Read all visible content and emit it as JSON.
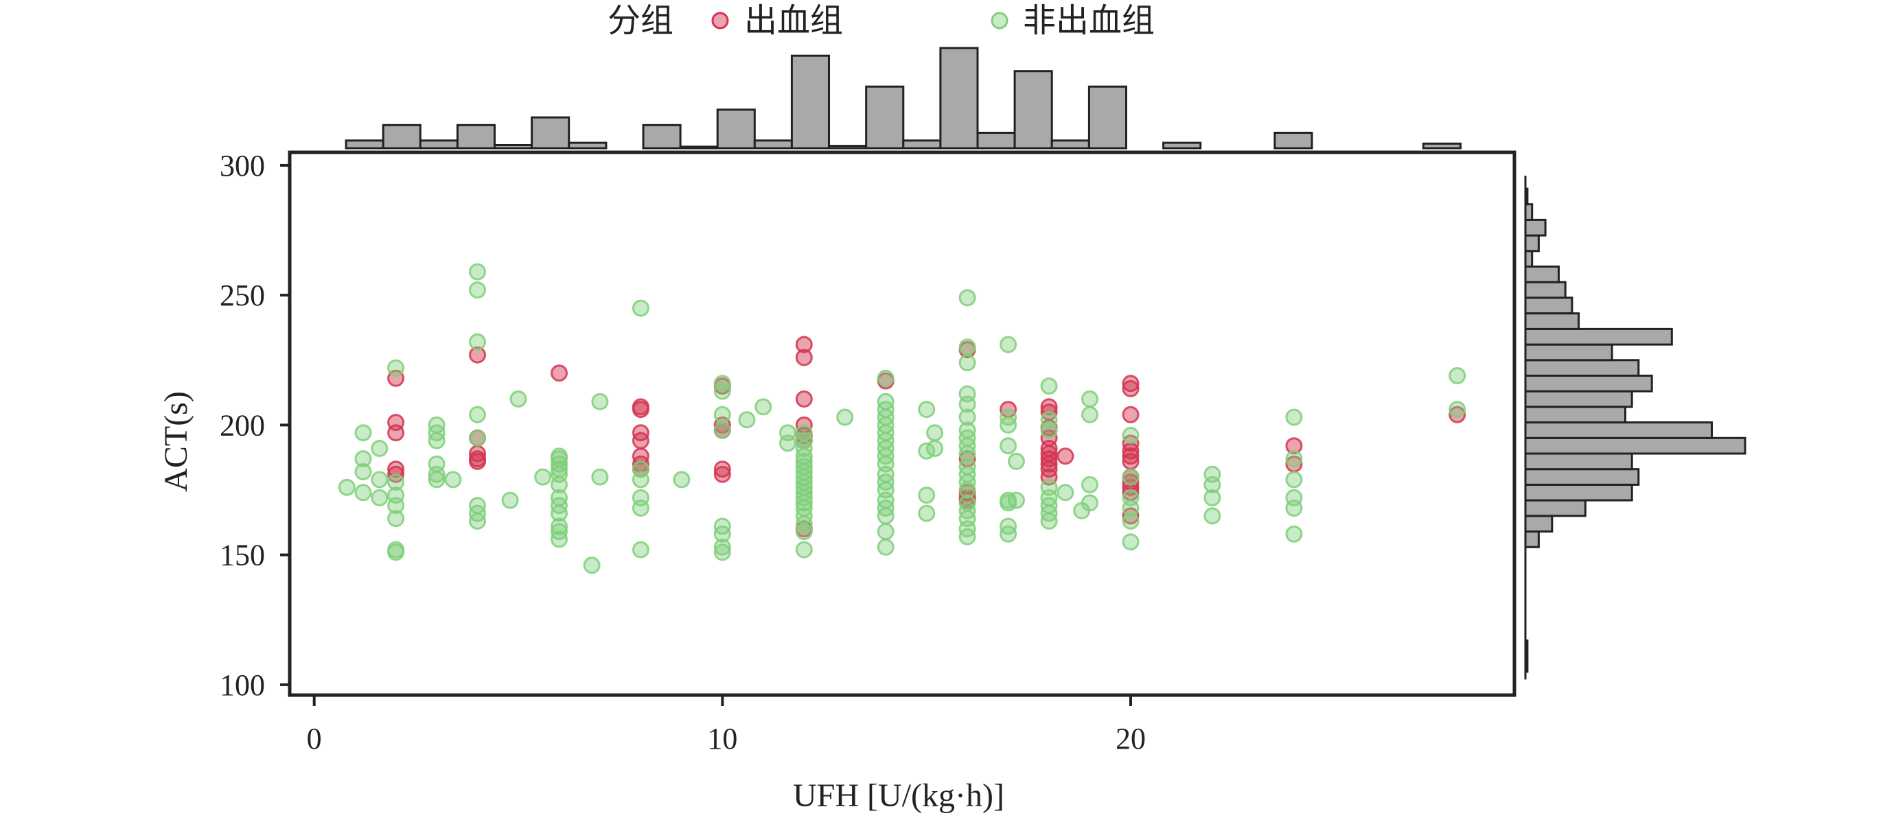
{
  "chart_data": {
    "type": "scatter",
    "xlabel": "UFH [U/(kg·h)]",
    "ylabel": "ACT(s)",
    "xlim": [
      -0.6,
      29.4
    ],
    "ylim": [
      96,
      305
    ],
    "x_ticks": [
      0,
      10,
      20
    ],
    "y_ticks": [
      100,
      150,
      200,
      250,
      300
    ],
    "legend": {
      "title": "分组",
      "placement": "top"
    },
    "marginal_histograms": {
      "top": {
        "type": "bar",
        "description_axis": "UFH",
        "bin_start": 0.78,
        "bin_width": 0.91,
        "counts": [
          1,
          3,
          1,
          3,
          0.4,
          4,
          0.7,
          0,
          3,
          0.2,
          5,
          1,
          12,
          0.3,
          8,
          1,
          13,
          2,
          10,
          1,
          8,
          0,
          0.7,
          0,
          0,
          2,
          0,
          0,
          0,
          0.6
        ]
      },
      "right": {
        "type": "bar",
        "description_axis": "ACT",
        "bin_start": 105,
        "bin_width": 6,
        "counts": [
          0.3,
          0.3,
          0,
          0,
          0,
          0,
          0,
          0,
          2,
          4,
          9,
          16,
          17,
          16,
          33,
          28,
          15,
          16,
          19,
          17,
          13,
          22,
          8,
          7,
          6,
          5,
          1,
          2,
          3,
          1,
          0.3
        ]
      }
    },
    "series": [
      {
        "name": "出血组",
        "color": "#d2344f",
        "points": [
          [
            2,
            218
          ],
          [
            2,
            201
          ],
          [
            2,
            197
          ],
          [
            2,
            183
          ],
          [
            2,
            181
          ],
          [
            4,
            227
          ],
          [
            4,
            195
          ],
          [
            4,
            189
          ],
          [
            4,
            187
          ],
          [
            4,
            186
          ],
          [
            6,
            220
          ],
          [
            8,
            207
          ],
          [
            8,
            206
          ],
          [
            8,
            197
          ],
          [
            8,
            194
          ],
          [
            8,
            188
          ],
          [
            8,
            185
          ],
          [
            8,
            183
          ],
          [
            10,
            215
          ],
          [
            10,
            200
          ],
          [
            10,
            198
          ],
          [
            10,
            183
          ],
          [
            10,
            181
          ],
          [
            12,
            231
          ],
          [
            12,
            226
          ],
          [
            12,
            210
          ],
          [
            12,
            200
          ],
          [
            12,
            196
          ],
          [
            12,
            194
          ],
          [
            12,
            160
          ],
          [
            14,
            217
          ],
          [
            16,
            229
          ],
          [
            16,
            187
          ],
          [
            16,
            174
          ],
          [
            16,
            172
          ],
          [
            16,
            171
          ],
          [
            17,
            206
          ],
          [
            18,
            207
          ],
          [
            18,
            205
          ],
          [
            18,
            199
          ],
          [
            18,
            195
          ],
          [
            18,
            191
          ],
          [
            18,
            189
          ],
          [
            18,
            187
          ],
          [
            18,
            185
          ],
          [
            18,
            183
          ],
          [
            18,
            180
          ],
          [
            18.4,
            188
          ],
          [
            20,
            216
          ],
          [
            20,
            214
          ],
          [
            20,
            204
          ],
          [
            20,
            193
          ],
          [
            20,
            190
          ],
          [
            20,
            188
          ],
          [
            20,
            186
          ],
          [
            20,
            180
          ],
          [
            20,
            178
          ],
          [
            20,
            176
          ],
          [
            20,
            174
          ],
          [
            20,
            165
          ],
          [
            24,
            192
          ],
          [
            24,
            185
          ],
          [
            28,
            204
          ]
        ]
      },
      {
        "name": "非出血组",
        "color": "#7fcf7a",
        "points": [
          [
            0.8,
            176
          ],
          [
            1.2,
            197
          ],
          [
            1.2,
            187
          ],
          [
            1.2,
            182
          ],
          [
            1.2,
            174
          ],
          [
            1.6,
            191
          ],
          [
            1.6,
            179
          ],
          [
            1.6,
            172
          ],
          [
            2,
            222
          ],
          [
            2,
            178
          ],
          [
            2,
            173
          ],
          [
            2,
            169
          ],
          [
            2,
            164
          ],
          [
            2,
            152
          ],
          [
            2,
            151
          ],
          [
            3,
            200
          ],
          [
            3,
            197
          ],
          [
            3,
            194
          ],
          [
            3,
            185
          ],
          [
            3,
            181
          ],
          [
            3,
            179
          ],
          [
            3.4,
            179
          ],
          [
            4,
            259
          ],
          [
            4,
            252
          ],
          [
            4,
            232
          ],
          [
            4,
            204
          ],
          [
            4,
            195
          ],
          [
            4,
            169
          ],
          [
            4,
            166
          ],
          [
            4,
            163
          ],
          [
            4.8,
            171
          ],
          [
            5,
            210
          ],
          [
            5.6,
            180
          ],
          [
            6,
            188
          ],
          [
            6,
            187
          ],
          [
            6,
            185
          ],
          [
            6,
            183
          ],
          [
            6,
            181
          ],
          [
            6,
            177
          ],
          [
            6,
            172
          ],
          [
            6,
            169
          ],
          [
            6,
            166
          ],
          [
            6,
            161
          ],
          [
            6,
            159
          ],
          [
            6,
            156
          ],
          [
            6.8,
            146
          ],
          [
            7,
            209
          ],
          [
            7,
            180
          ],
          [
            8,
            245
          ],
          [
            8,
            183
          ],
          [
            8,
            179
          ],
          [
            8,
            172
          ],
          [
            8,
            168
          ],
          [
            8,
            152
          ],
          [
            9,
            179
          ],
          [
            10,
            216
          ],
          [
            10,
            213
          ],
          [
            10,
            204
          ],
          [
            10,
            198
          ],
          [
            10,
            161
          ],
          [
            10,
            158
          ],
          [
            10,
            153
          ],
          [
            10,
            151
          ],
          [
            10.6,
            202
          ],
          [
            11,
            207
          ],
          [
            11.6,
            197
          ],
          [
            11.6,
            193
          ],
          [
            12,
            197
          ],
          [
            12,
            194
          ],
          [
            12,
            191
          ],
          [
            12,
            188
          ],
          [
            12,
            186
          ],
          [
            12,
            184
          ],
          [
            12,
            182
          ],
          [
            12,
            180
          ],
          [
            12,
            178
          ],
          [
            12,
            176
          ],
          [
            12,
            174
          ],
          [
            12,
            172
          ],
          [
            12,
            170
          ],
          [
            12,
            168
          ],
          [
            12,
            165
          ],
          [
            12,
            162
          ],
          [
            12,
            159
          ],
          [
            12,
            152
          ],
          [
            13,
            203
          ],
          [
            14,
            218
          ],
          [
            14,
            209
          ],
          [
            14,
            206
          ],
          [
            14,
            203
          ],
          [
            14,
            200
          ],
          [
            14,
            197
          ],
          [
            14,
            194
          ],
          [
            14,
            191
          ],
          [
            14,
            188
          ],
          [
            14,
            185
          ],
          [
            14,
            181
          ],
          [
            14,
            178
          ],
          [
            14,
            175
          ],
          [
            14,
            171
          ],
          [
            14,
            168
          ],
          [
            14,
            165
          ],
          [
            14,
            159
          ],
          [
            14,
            153
          ],
          [
            15,
            206
          ],
          [
            15,
            190
          ],
          [
            15,
            173
          ],
          [
            15,
            166
          ],
          [
            15.2,
            197
          ],
          [
            15.2,
            191
          ],
          [
            16,
            249
          ],
          [
            16,
            230
          ],
          [
            16,
            224
          ],
          [
            16,
            212
          ],
          [
            16,
            208
          ],
          [
            16,
            203
          ],
          [
            16,
            198
          ],
          [
            16,
            195
          ],
          [
            16,
            192
          ],
          [
            16,
            189
          ],
          [
            16,
            184
          ],
          [
            16,
            181
          ],
          [
            16,
            178
          ],
          [
            16,
            175
          ],
          [
            16,
            170
          ],
          [
            16,
            167
          ],
          [
            16,
            164
          ],
          [
            16,
            160
          ],
          [
            16,
            157
          ],
          [
            17,
            231
          ],
          [
            17,
            203
          ],
          [
            17,
            200
          ],
          [
            17,
            192
          ],
          [
            17,
            171
          ],
          [
            17,
            170
          ],
          [
            17,
            161
          ],
          [
            17,
            158
          ],
          [
            17.2,
            186
          ],
          [
            17.2,
            171
          ],
          [
            18,
            215
          ],
          [
            18,
            202
          ],
          [
            18,
            198
          ],
          [
            18,
            176
          ],
          [
            18,
            172
          ],
          [
            18,
            169
          ],
          [
            18,
            166
          ],
          [
            18,
            163
          ],
          [
            18.4,
            174
          ],
          [
            19,
            210
          ],
          [
            19,
            204
          ],
          [
            19,
            177
          ],
          [
            19,
            170
          ],
          [
            18.8,
            167
          ],
          [
            20,
            196
          ],
          [
            20,
            180
          ],
          [
            20,
            172
          ],
          [
            20,
            168
          ],
          [
            20,
            163
          ],
          [
            20,
            155
          ],
          [
            22,
            181
          ],
          [
            22,
            177
          ],
          [
            22,
            172
          ],
          [
            22,
            165
          ],
          [
            24,
            203
          ],
          [
            24,
            187
          ],
          [
            24,
            179
          ],
          [
            24,
            172
          ],
          [
            24,
            168
          ],
          [
            24,
            158
          ],
          [
            28,
            219
          ],
          [
            28,
            206
          ]
        ]
      }
    ]
  }
}
